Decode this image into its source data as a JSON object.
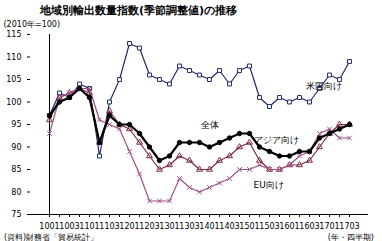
{
  "chart_data": {
    "type": "line",
    "title": "地域別輸出数量指数(季節調整値)の推移",
    "ylabel": "(2010年=100)",
    "xlabel": "(年・四半期)",
    "source": "(資料)財務省「貿易統計」",
    "categories": [
      "1001",
      null,
      "1003",
      null,
      "1101",
      null,
      "1103",
      null,
      "1201",
      null,
      "1203",
      null,
      "1301",
      null,
      "1303",
      null,
      "1401",
      null,
      "1403",
      null,
      "1501",
      null,
      "1503",
      null,
      "1601",
      null,
      "1603",
      null,
      "1701",
      null,
      "1703"
    ],
    "ylim": [
      75,
      115
    ],
    "yticks": [
      75,
      80,
      85,
      90,
      95,
      100,
      105,
      110,
      115
    ],
    "grid": false,
    "series": [
      {
        "name": "米国向け",
        "color": "#1f2a6b",
        "marker": "square",
        "values": [
          97,
          102,
          101,
          104,
          103,
          88,
          100,
          105,
          113,
          112,
          106,
          105,
          104,
          108,
          107,
          106,
          105,
          107,
          104,
          107,
          108,
          101,
          99,
          101,
          100,
          101,
          100,
          103,
          106,
          105,
          109
        ]
      },
      {
        "name": "全体",
        "color": "#000000",
        "marker": "circle",
        "values": [
          97,
          100,
          101,
          103,
          101,
          91,
          97,
          95,
          95,
          93,
          90,
          87,
          88,
          91,
          91,
          91,
          90,
          91,
          92,
          93,
          93,
          90,
          89,
          88,
          88,
          89,
          89,
          92,
          93,
          94,
          95
        ]
      },
      {
        "name": "アジア向け",
        "color": "#7b2c3f",
        "marker": "triangle",
        "values": [
          96,
          101,
          102,
          103,
          102,
          91,
          98,
          95,
          94,
          91,
          88,
          85,
          86,
          88,
          87,
          85,
          85,
          87,
          88,
          90,
          91,
          87,
          85,
          85,
          86,
          86,
          87,
          90,
          93,
          95,
          95
        ]
      },
      {
        "name": "EU向け",
        "color": "#a0508a",
        "marker": "times",
        "values": [
          93,
          101,
          102,
          103,
          103,
          96,
          95,
          94,
          89,
          84,
          78,
          78,
          78,
          83,
          81,
          80,
          81,
          82,
          83,
          85,
          85,
          86,
          85,
          85,
          86,
          88,
          89,
          93,
          94,
          92,
          92
        ]
      }
    ]
  }
}
